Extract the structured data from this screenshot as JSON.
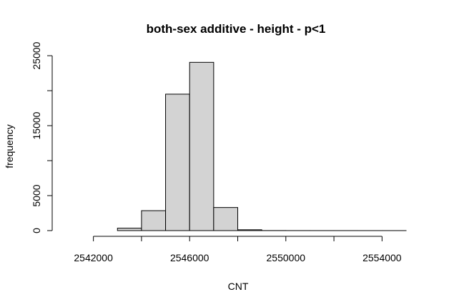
{
  "chart_data": {
    "type": "bar",
    "title": "both-sex additive - height - p<1",
    "xlabel": "CNT",
    "ylabel": "frequency",
    "xlim": [
      2541000,
      2555000
    ],
    "ylim": [
      0,
      25000
    ],
    "bin_width": 1000,
    "bins": [
      {
        "start": 2541000,
        "end": 2542000,
        "value": 0
      },
      {
        "start": 2542000,
        "end": 2543000,
        "value": 0
      },
      {
        "start": 2543000,
        "end": 2544000,
        "value": 350
      },
      {
        "start": 2544000,
        "end": 2545000,
        "value": 2850
      },
      {
        "start": 2545000,
        "end": 2546000,
        "value": 19500
      },
      {
        "start": 2546000,
        "end": 2547000,
        "value": 24050
      },
      {
        "start": 2547000,
        "end": 2548000,
        "value": 3300
      },
      {
        "start": 2548000,
        "end": 2549000,
        "value": 120
      },
      {
        "start": 2549000,
        "end": 2550000,
        "value": 10
      },
      {
        "start": 2550000,
        "end": 2551000,
        "value": 5
      },
      {
        "start": 2551000,
        "end": 2552000,
        "value": 3
      },
      {
        "start": 2552000,
        "end": 2553000,
        "value": 2
      },
      {
        "start": 2553000,
        "end": 2554000,
        "value": 1
      },
      {
        "start": 2554000,
        "end": 2555000,
        "value": 1
      }
    ],
    "x_ticks": [
      2542000,
      2544000,
      2546000,
      2548000,
      2550000,
      2552000,
      2554000
    ],
    "x_tick_labels": [
      "2542000",
      "",
      "2546000",
      "",
      "2550000",
      "",
      "2554000"
    ],
    "y_ticks": [
      0,
      5000,
      10000,
      15000,
      20000,
      25000
    ],
    "y_tick_labels": [
      "0",
      "5000",
      "",
      "15000",
      "",
      "25000"
    ],
    "grid": false
  }
}
